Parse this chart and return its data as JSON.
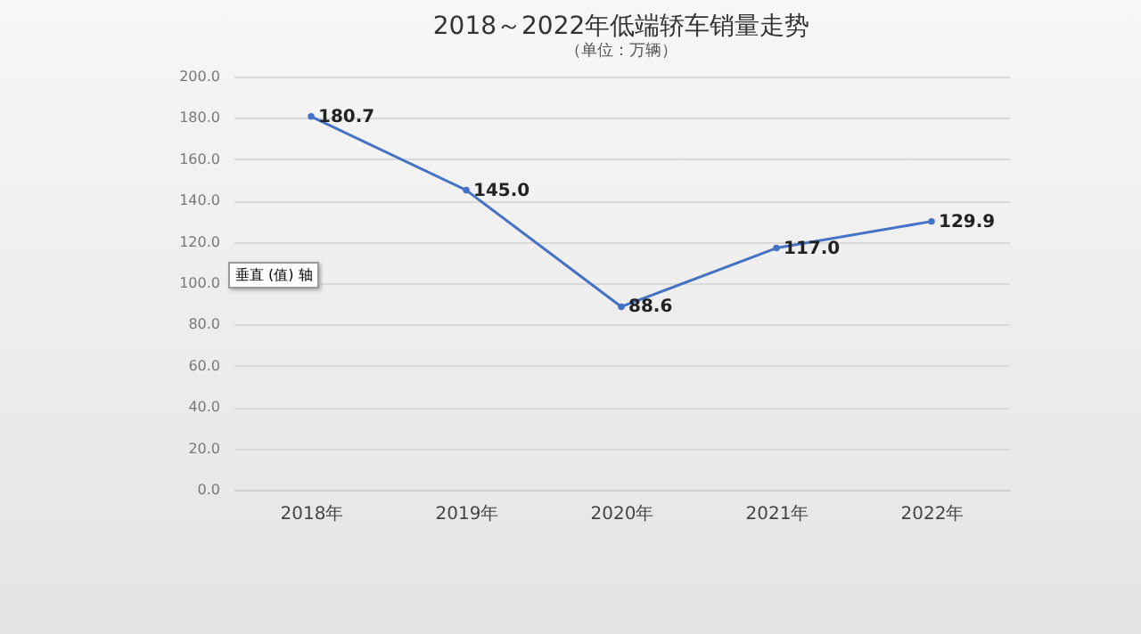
{
  "chart_data": {
    "type": "line",
    "title": "2018～2022年低端轿车销量走势",
    "subtitle": "（单位：万辆）",
    "categories": [
      "2018年",
      "2019年",
      "2020年",
      "2021年",
      "2022年"
    ],
    "series": [
      {
        "color": "#4472c4",
        "values": [
          180.7,
          145.0,
          88.6,
          117.0,
          129.9
        ]
      }
    ],
    "value_labels": [
      "180.7",
      "145.0",
      "88.6",
      "117.0",
      "129.9"
    ],
    "ylim": [
      0,
      200
    ],
    "yticks": [
      {
        "value": 0,
        "label": "0.0"
      },
      {
        "value": 20,
        "label": "20.0"
      },
      {
        "value": 40,
        "label": "40.0"
      },
      {
        "value": 60,
        "label": "60.0"
      },
      {
        "value": 80,
        "label": "80.0"
      },
      {
        "value": 100,
        "label": "100.0"
      },
      {
        "value": 120,
        "label": "120.0"
      },
      {
        "value": 140,
        "label": "140.0"
      },
      {
        "value": 160,
        "label": "160.0"
      },
      {
        "value": 180,
        "label": "180.0"
      },
      {
        "value": 200,
        "label": "200.0"
      }
    ],
    "grid": "y",
    "marker": "circle",
    "annotations": [
      "垂直 (值) 轴"
    ]
  }
}
